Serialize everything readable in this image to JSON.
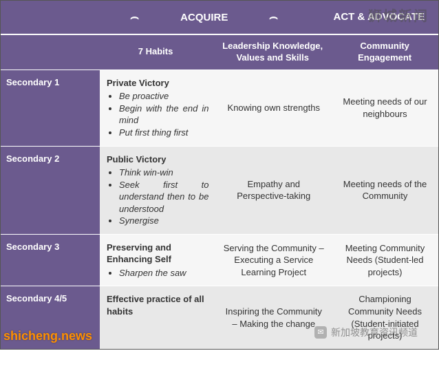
{
  "colors": {
    "purple": "#6b5a8e",
    "row_alt": "#e8e8e8",
    "text": "#333333",
    "watermark_orange": "#ff9000"
  },
  "topHeader": {
    "acquire": "ACQUIRE",
    "act": "ACT & ADVOCATE"
  },
  "subHeader": {
    "habits": "7 Habits",
    "leadership": "Leadership Knowledge, Values and Skills",
    "community": "Community Engagement"
  },
  "rows": [
    {
      "level": "Secondary 1",
      "habitsTitle": "Private Victory",
      "habitsItems": [
        "Be proactive",
        "Begin with the end in mind",
        "Put first thing first"
      ],
      "leadership": "Knowing own strengths",
      "community": "Meeting needs of our neighbours"
    },
    {
      "level": "Secondary 2",
      "habitsTitle": "Public Victory",
      "habitsItems": [
        "Think win-win",
        "Seek first to understand then to be understood",
        "Synergise"
      ],
      "leadership": "Empathy and Perspective-taking",
      "community": "Meeting needs of the Community"
    },
    {
      "level": "Secondary 3",
      "habitsTitle": "Preserving and Enhancing Self",
      "habitsItems": [
        "Sharpen the saw"
      ],
      "leadership": "Serving the Community – Executing a Service Learning Project",
      "community": "Meeting Community Needs (Student-led projects)"
    },
    {
      "level": "Secondary 4/5",
      "habitsTitle": "Effective practice of all habits",
      "habitsItems": [],
      "leadership": "Inspiring the Community – Making the change",
      "community": "Championing Community Needs (Student-initiated projects)"
    }
  ],
  "watermarks": {
    "top": "狮城新闻",
    "bottomLeft": "shicheng.news",
    "bottomRight": "新加坡教育资讯频道"
  }
}
